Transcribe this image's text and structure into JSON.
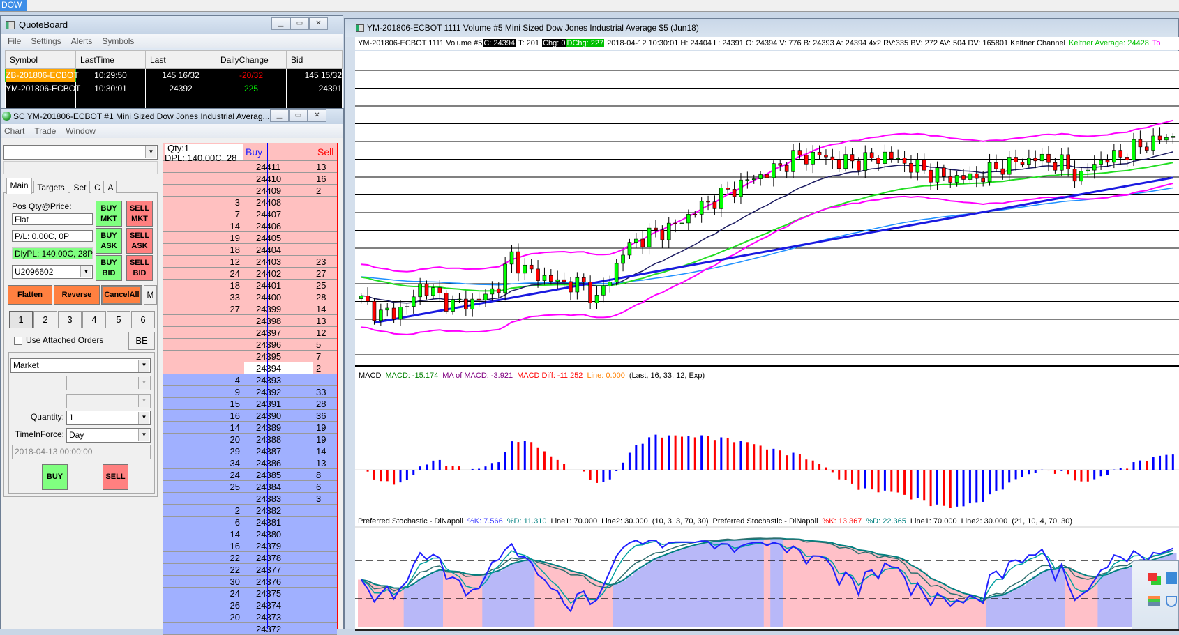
{
  "taskbar": {
    "tab": "DOW"
  },
  "quoteboard": {
    "title": "QuoteBoard",
    "menu": [
      "File",
      "Settings",
      "Alerts",
      "Symbols"
    ],
    "columns": [
      "Symbol",
      "LastTime",
      "Last",
      "DailyChange",
      "Bid"
    ],
    "rows": [
      {
        "symbol": "ZB-201806-ECBOT",
        "last_time": "10:29:50",
        "last": "145 16/32",
        "daily_change": "-20/32",
        "bid": "145 15/32"
      },
      {
        "symbol": "YM-201806-ECBOT",
        "last_time": "10:30:01",
        "last": "24392",
        "daily_change": "225",
        "bid": "24391"
      }
    ],
    "colors": {
      "highlight": "#ffa500",
      "negative": "#ff0000",
      "positive": "#00ff00"
    }
  },
  "trade_window": {
    "title": "SC YM-201806-ECBOT  #1  Mini Sized Dow Jones Industrial Averag...",
    "menu": [
      "Chart",
      "Trade",
      "Window"
    ],
    "tabs": [
      "Main",
      "Targets",
      "Set",
      "C",
      "A"
    ],
    "pos_label": "Pos Qty@Price:",
    "position": "Flat",
    "pl": "P/L: 0.00C, 0P",
    "daily_pl": "DlyPL: 140.00C, 28P",
    "account": "U2096602",
    "buy_mkt": [
      "BUY",
      "MKT"
    ],
    "sell_mkt": [
      "SELL",
      "MKT"
    ],
    "buy_ask": [
      "BUY",
      "ASK"
    ],
    "sell_ask": [
      "SELL",
      "ASK"
    ],
    "buy_bid": [
      "BUY",
      "BID"
    ],
    "sell_bid": [
      "SELL",
      "BID"
    ],
    "flatten": "Flatten",
    "reverse": "Reverse",
    "cancel_all": "CancelAll",
    "m": "M",
    "qty_tabs": [
      "1",
      "2",
      "3",
      "4",
      "5",
      "6"
    ],
    "use_attached": "Use Attached Orders",
    "be": "BE",
    "order_type": "Market",
    "quantity_label": "Quantity:",
    "quantity": "1",
    "tif_label": "TimeInForce:",
    "tif": "Day",
    "date": "2018-04-13  00:00:00",
    "buy": "BUY",
    "sell": "SELL"
  },
  "ladder": {
    "qty": "Qty:1",
    "dpl": "DPL: 140.00C, 28",
    "buy_header": "Buy",
    "sell_header": "Sell",
    "last_price": "24394",
    "rows": [
      [
        "",
        "24411",
        "13"
      ],
      [
        "",
        "24410",
        "16"
      ],
      [
        "",
        "24409",
        "2"
      ],
      [
        "3",
        "24408",
        ""
      ],
      [
        "7",
        "24407",
        ""
      ],
      [
        "14",
        "24406",
        ""
      ],
      [
        "19",
        "24405",
        ""
      ],
      [
        "18",
        "24404",
        ""
      ],
      [
        "12",
        "24403",
        "23"
      ],
      [
        "24",
        "24402",
        "27"
      ],
      [
        "18",
        "24401",
        "25"
      ],
      [
        "33",
        "24400",
        "28"
      ],
      [
        "27",
        "24399",
        "14"
      ],
      [
        "",
        "24398",
        "13"
      ],
      [
        "",
        "24397",
        "12"
      ],
      [
        "",
        "24396",
        "5"
      ],
      [
        "",
        "24395",
        "7"
      ],
      [
        "",
        "24394",
        "2"
      ],
      [
        "4",
        "24393",
        ""
      ],
      [
        "9",
        "24392",
        "33"
      ],
      [
        "15",
        "24391",
        "28"
      ],
      [
        "16",
        "24390",
        "36"
      ],
      [
        "14",
        "24389",
        "19"
      ],
      [
        "20",
        "24388",
        "19"
      ],
      [
        "29",
        "24387",
        "14"
      ],
      [
        "34",
        "24386",
        "13"
      ],
      [
        "24",
        "24385",
        "8"
      ],
      [
        "25",
        "24384",
        "6"
      ],
      [
        "",
        "24383",
        "3"
      ],
      [
        "2",
        "24382",
        ""
      ],
      [
        "6",
        "24381",
        ""
      ],
      [
        "14",
        "24380",
        ""
      ],
      [
        "16",
        "24379",
        ""
      ],
      [
        "22",
        "24378",
        ""
      ],
      [
        "22",
        "24377",
        ""
      ],
      [
        "30",
        "24376",
        ""
      ],
      [
        "24",
        "24375",
        ""
      ],
      [
        "26",
        "24374",
        ""
      ],
      [
        "20",
        "24373",
        ""
      ],
      [
        "",
        "24372",
        ""
      ]
    ],
    "colors": {
      "ask_bg": "#ffc0c0",
      "bid_bg": "#a0b0ff"
    }
  },
  "chart": {
    "title": "YM-201806-ECBOT  1111 Volume  #5  Mini Sized Dow Jones Industrial Average $5 (Jun18)",
    "info": {
      "symbol": "YM-201806-ECBOT  1111 Volume  #5",
      "c": "C: 24394",
      "t": "T: 201",
      "chg": "Chg: 0",
      "dchg": "DChg: 227",
      "rest": "2018-04-12 10:30:01 H: 24404 L: 24391 O: 24394 V: 776 B: 24393 A: 24394 4x2 RV:335 BV: 272 AV: 504 DV: 165801 Keltner Channel",
      "keltner_avg": "Keltner Average: 24428",
      "top": "To"
    },
    "macd_label": {
      "name": "MACD",
      "macd": "MACD: -15.174",
      "ma": "MA of MACD: -3.921",
      "diff": "MACD Diff: -11.252",
      "line": "Line: 0.000",
      "params": "(Last, 16, 33, 12, Exp)"
    },
    "stoch1": {
      "name": "Preferred Stochastic - DiNapoli",
      "k": "%K: 7.566",
      "d": "%D: 11.310",
      "l1": "Line1: 70.000",
      "l2": "Line2: 30.000",
      "params": "(10, 3, 3, 70, 30)"
    },
    "stoch2": {
      "name": "Preferred Stochastic - DiNapoli",
      "k": "%K: 13.367",
      "d": "%D: 22.365",
      "l1": "Line1: 70.000",
      "l2": "Line2: 30.000",
      "params": "(21, 10, 4, 70, 30)"
    }
  },
  "chart_data": {
    "type": "candlestick",
    "bars": 125,
    "ylim": [
      24241,
      24447
    ],
    "close_keypoints": [
      [
        0,
        24284
      ],
      [
        3,
        24274
      ],
      [
        7,
        24279
      ],
      [
        9,
        24294
      ],
      [
        14,
        24281
      ],
      [
        18,
        24284
      ],
      [
        21,
        24294
      ],
      [
        23,
        24314
      ],
      [
        25,
        24304
      ],
      [
        30,
        24296
      ],
      [
        34,
        24294
      ],
      [
        36,
        24284
      ],
      [
        38,
        24299
      ],
      [
        40,
        24316
      ],
      [
        42,
        24324
      ],
      [
        48,
        24334
      ],
      [
        51,
        24344
      ],
      [
        55,
        24354
      ],
      [
        59,
        24364
      ],
      [
        63,
        24371
      ],
      [
        66,
        24379
      ],
      [
        70,
        24381
      ],
      [
        73,
        24376
      ],
      [
        78,
        24378
      ],
      [
        80,
        24381
      ],
      [
        84,
        24374
      ],
      [
        89,
        24366
      ],
      [
        94,
        24366
      ],
      [
        98,
        24374
      ],
      [
        103,
        24379
      ],
      [
        107,
        24375
      ],
      [
        110,
        24366
      ],
      [
        112,
        24376
      ],
      [
        116,
        24381
      ],
      [
        120,
        24389
      ],
      [
        124,
        24394
      ]
    ],
    "trendline": [
      [
        2,
        24269
      ],
      [
        124,
        24366
      ]
    ],
    "keltner_offset": 21,
    "stoch_lines": [
      70,
      30
    ],
    "colors": {
      "up": "#00ff00",
      "down": "#ff0000",
      "band": "#ff00ff",
      "ma1": "#1a1a60",
      "ma2": "#22dd22",
      "ma3": "#1e90ff",
      "trend": "#1a1ae0",
      "macd_up": "#0000ff",
      "macd_down": "#ff0000"
    }
  }
}
